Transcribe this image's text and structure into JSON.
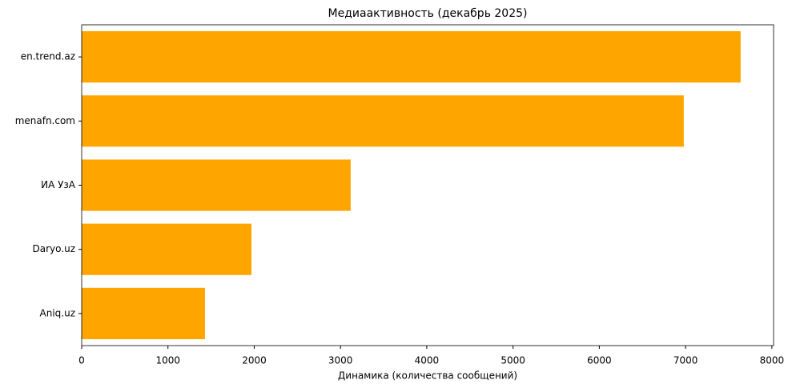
{
  "chart_data": {
    "type": "barh",
    "title": "Медиаактивность (декабрь 2025)",
    "xlabel": "Динамика (количества сообщений)",
    "categories": [
      "en.trend.az",
      "menafn.com",
      "ИА УзА",
      "Daryo.uz",
      "Aniq.uz"
    ],
    "values": [
      7638,
      6979,
      3118,
      1968,
      1429
    ],
    "color": "#ffa500",
    "xlim": [
      0,
      8020
    ],
    "xticks": [
      0,
      1000,
      2000,
      3000,
      4000,
      5000,
      6000,
      7000,
      8000
    ],
    "grid": false
  }
}
